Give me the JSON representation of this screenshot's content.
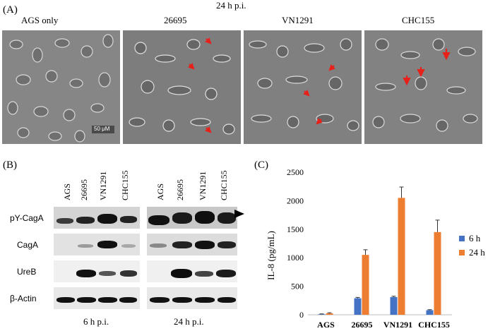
{
  "panel_a": {
    "label": "(A)",
    "timepoint": "24 h p.i.",
    "conditions": [
      "AGS only",
      "26695",
      "VN1291",
      "CHC155"
    ],
    "scale_bar": "50 μM",
    "arrow_color": "#e8201a"
  },
  "panel_b": {
    "label": "(B)",
    "lanes": [
      "AGS",
      "26695",
      "VN1291",
      "CHC155"
    ],
    "rows": [
      "pY-CagA",
      "CagA",
      "UreB",
      "β-Actin"
    ],
    "groups": [
      "6 h p.i.",
      "24 h p.i."
    ]
  },
  "panel_c": {
    "label": "(C)"
  },
  "chart_data": {
    "type": "bar",
    "categories": [
      "AGS",
      "26695",
      "VN1291",
      "CHC155"
    ],
    "series": [
      {
        "name": "6 h",
        "color": "#4472c4",
        "values": [
          10,
          290,
          310,
          80
        ],
        "errors": [
          5,
          15,
          15,
          10
        ]
      },
      {
        "name": "24 h",
        "color": "#ed7d31",
        "values": [
          25,
          1050,
          2050,
          1450
        ],
        "errors": [
          10,
          90,
          190,
          210
        ]
      }
    ],
    "ylabel": "IL-8 (pg/mL)",
    "ylim": [
      0,
      2500
    ],
    "yticks": [
      0,
      500,
      1000,
      1500,
      2000,
      2500
    ],
    "ytick_labels": [
      "0",
      "500",
      "1000",
      "1500",
      "2000",
      "2500"
    ],
    "legend": "right",
    "grid": false
  }
}
